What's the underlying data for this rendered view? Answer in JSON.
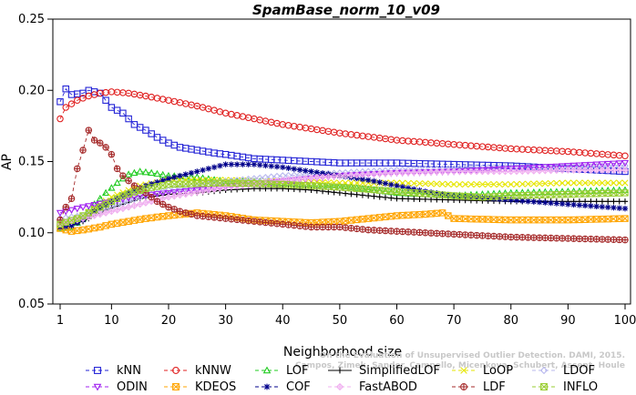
{
  "chart_data": {
    "type": "line",
    "title": "SpamBase_norm_10_v09",
    "xlabel": "Neighborhood size",
    "ylabel": "AP",
    "xlim": [
      1,
      100
    ],
    "ylim": [
      0.05,
      0.25
    ],
    "xticks": [
      "1",
      "10",
      "20",
      "30",
      "40",
      "50",
      "60",
      "70",
      "80",
      "90",
      "100"
    ],
    "yticks": [
      "0.05",
      "0.10",
      "0.15",
      "0.20",
      "0.25"
    ],
    "legend_position": "bottom",
    "watermark": [
      "On the Evaluation of Unsupervised Outlier Detection. DAMI, 2015.",
      "Campos, Zimek, Sander, Campello, Micenkova, Schubert, Assent, Houle"
    ],
    "series": [
      {
        "name": "kNN",
        "color": "#2323d6",
        "marker": "square",
        "dash": "4,3",
        "points": [
          [
            1,
            0.192
          ],
          [
            2,
            0.201
          ],
          [
            3,
            0.197
          ],
          [
            5,
            0.198
          ],
          [
            6,
            0.2
          ],
          [
            8,
            0.198
          ],
          [
            10,
            0.188
          ],
          [
            12,
            0.184
          ],
          [
            14,
            0.176
          ],
          [
            16,
            0.172
          ],
          [
            18,
            0.167
          ],
          [
            20,
            0.163
          ],
          [
            22,
            0.16
          ],
          [
            25,
            0.158
          ],
          [
            28,
            0.156
          ],
          [
            30,
            0.155
          ],
          [
            35,
            0.152
          ],
          [
            40,
            0.151
          ],
          [
            45,
            0.15
          ],
          [
            50,
            0.149
          ],
          [
            60,
            0.149
          ],
          [
            70,
            0.148
          ],
          [
            80,
            0.147
          ],
          [
            90,
            0.145
          ],
          [
            100,
            0.143
          ]
        ]
      },
      {
        "name": "kNNW",
        "color": "#e02020",
        "marker": "circle",
        "dash": "4,3",
        "points": [
          [
            1,
            0.18
          ],
          [
            2,
            0.188
          ],
          [
            4,
            0.193
          ],
          [
            6,
            0.196
          ],
          [
            8,
            0.198
          ],
          [
            10,
            0.199
          ],
          [
            13,
            0.198
          ],
          [
            16,
            0.196
          ],
          [
            20,
            0.193
          ],
          [
            25,
            0.189
          ],
          [
            30,
            0.184
          ],
          [
            35,
            0.18
          ],
          [
            40,
            0.176
          ],
          [
            50,
            0.17
          ],
          [
            60,
            0.165
          ],
          [
            70,
            0.162
          ],
          [
            80,
            0.159
          ],
          [
            90,
            0.157
          ],
          [
            100,
            0.154
          ]
        ]
      },
      {
        "name": "LOF",
        "color": "#22cc22",
        "marker": "triangle",
        "dash": "4,3",
        "points": [
          [
            1,
            0.103
          ],
          [
            3,
            0.104
          ],
          [
            5,
            0.11
          ],
          [
            7,
            0.12
          ],
          [
            9,
            0.128
          ],
          [
            11,
            0.135
          ],
          [
            13,
            0.141
          ],
          [
            15,
            0.143
          ],
          [
            17,
            0.142
          ],
          [
            20,
            0.14
          ],
          [
            25,
            0.139
          ],
          [
            30,
            0.136
          ],
          [
            35,
            0.136
          ],
          [
            40,
            0.135
          ],
          [
            50,
            0.133
          ],
          [
            60,
            0.128
          ],
          [
            70,
            0.126
          ],
          [
            80,
            0.128
          ],
          [
            90,
            0.129
          ],
          [
            100,
            0.13
          ]
        ]
      },
      {
        "name": "SimplifiedLOF",
        "color": "#000000",
        "marker": "plus",
        "dash": "",
        "points": [
          [
            1,
            0.108
          ],
          [
            3,
            0.106
          ],
          [
            5,
            0.108
          ],
          [
            7,
            0.112
          ],
          [
            9,
            0.116
          ],
          [
            12,
            0.12
          ],
          [
            15,
            0.124
          ],
          [
            20,
            0.127
          ],
          [
            25,
            0.128
          ],
          [
            30,
            0.13
          ],
          [
            35,
            0.131
          ],
          [
            40,
            0.131
          ],
          [
            45,
            0.13
          ],
          [
            50,
            0.128
          ],
          [
            55,
            0.126
          ],
          [
            60,
            0.124
          ],
          [
            70,
            0.123
          ],
          [
            80,
            0.122
          ],
          [
            90,
            0.122
          ],
          [
            100,
            0.122
          ]
        ]
      },
      {
        "name": "LoOP",
        "color": "#e6e600",
        "marker": "x",
        "dash": "4,3",
        "points": [
          [
            1,
            0.105
          ],
          [
            5,
            0.112
          ],
          [
            10,
            0.125
          ],
          [
            15,
            0.133
          ],
          [
            20,
            0.137
          ],
          [
            30,
            0.137
          ],
          [
            40,
            0.136
          ],
          [
            50,
            0.135
          ],
          [
            60,
            0.135
          ],
          [
            70,
            0.134
          ],
          [
            80,
            0.134
          ],
          [
            90,
            0.135
          ],
          [
            100,
            0.135
          ]
        ]
      },
      {
        "name": "LDOF",
        "color": "#b8b8ee",
        "marker": "diamond",
        "dash": "4,3",
        "points": [
          [
            1,
            0.11
          ],
          [
            5,
            0.112
          ],
          [
            10,
            0.118
          ],
          [
            15,
            0.125
          ],
          [
            20,
            0.13
          ],
          [
            30,
            0.136
          ],
          [
            40,
            0.14
          ],
          [
            50,
            0.142
          ],
          [
            60,
            0.144
          ],
          [
            70,
            0.145
          ],
          [
            80,
            0.146
          ],
          [
            90,
            0.146
          ],
          [
            100,
            0.147
          ]
        ]
      },
      {
        "name": "ODIN",
        "color": "#a020f0",
        "marker": "invtriangle",
        "dash": "4,3",
        "points": [
          [
            1,
            0.114
          ],
          [
            3,
            0.116
          ],
          [
            5,
            0.118
          ],
          [
            10,
            0.122
          ],
          [
            15,
            0.126
          ],
          [
            20,
            0.128
          ],
          [
            25,
            0.13
          ],
          [
            30,
            0.132
          ],
          [
            40,
            0.136
          ],
          [
            50,
            0.14
          ],
          [
            60,
            0.142
          ],
          [
            70,
            0.143
          ],
          [
            80,
            0.145
          ],
          [
            90,
            0.147
          ],
          [
            100,
            0.149
          ]
        ]
      },
      {
        "name": "KDEOS",
        "color": "#ffa500",
        "marker": "boxx",
        "dash": "4,3",
        "points": [
          [
            1,
            0.103
          ],
          [
            3,
            0.101
          ],
          [
            5,
            0.102
          ],
          [
            8,
            0.104
          ],
          [
            10,
            0.106
          ],
          [
            13,
            0.108
          ],
          [
            16,
            0.11
          ],
          [
            20,
            0.112
          ],
          [
            25,
            0.114
          ],
          [
            30,
            0.112
          ],
          [
            35,
            0.109
          ],
          [
            40,
            0.108
          ],
          [
            45,
            0.107
          ],
          [
            50,
            0.108
          ],
          [
            55,
            0.11
          ],
          [
            60,
            0.112
          ],
          [
            65,
            0.113
          ],
          [
            68,
            0.114
          ],
          [
            70,
            0.11
          ],
          [
            80,
            0.109
          ],
          [
            90,
            0.109
          ],
          [
            100,
            0.11
          ]
        ]
      },
      {
        "name": "COF",
        "color": "#00008b",
        "marker": "star",
        "dash": "4,3",
        "points": [
          [
            1,
            0.104
          ],
          [
            3,
            0.105
          ],
          [
            5,
            0.109
          ],
          [
            7,
            0.115
          ],
          [
            10,
            0.122
          ],
          [
            13,
            0.128
          ],
          [
            16,
            0.133
          ],
          [
            20,
            0.138
          ],
          [
            25,
            0.143
          ],
          [
            30,
            0.148
          ],
          [
            35,
            0.148
          ],
          [
            40,
            0.146
          ],
          [
            45,
            0.143
          ],
          [
            50,
            0.14
          ],
          [
            55,
            0.137
          ],
          [
            60,
            0.133
          ],
          [
            65,
            0.129
          ],
          [
            70,
            0.126
          ],
          [
            80,
            0.123
          ],
          [
            90,
            0.12
          ],
          [
            100,
            0.117
          ]
        ]
      },
      {
        "name": "FastABOD",
        "color": "#f0b0f0",
        "marker": "diamondplus",
        "dash": "4,3",
        "points": [
          [
            1,
            0.106
          ],
          [
            5,
            0.11
          ],
          [
            10,
            0.115
          ],
          [
            15,
            0.12
          ],
          [
            20,
            0.125
          ],
          [
            30,
            0.132
          ],
          [
            40,
            0.137
          ],
          [
            50,
            0.14
          ],
          [
            60,
            0.142
          ],
          [
            70,
            0.143
          ],
          [
            80,
            0.143
          ],
          [
            90,
            0.144
          ],
          [
            100,
            0.144
          ]
        ]
      },
      {
        "name": "LDF",
        "color": "#a52a2a",
        "marker": "circleplus",
        "dash": "4,3",
        "points": [
          [
            1,
            0.109
          ],
          [
            2,
            0.118
          ],
          [
            3,
            0.124
          ],
          [
            4,
            0.145
          ],
          [
            5,
            0.158
          ],
          [
            6,
            0.172
          ],
          [
            7,
            0.165
          ],
          [
            8,
            0.163
          ],
          [
            9,
            0.16
          ],
          [
            10,
            0.155
          ],
          [
            11,
            0.145
          ],
          [
            12,
            0.14
          ],
          [
            14,
            0.133
          ],
          [
            16,
            0.128
          ],
          [
            18,
            0.122
          ],
          [
            20,
            0.118
          ],
          [
            22,
            0.115
          ],
          [
            25,
            0.112
          ],
          [
            30,
            0.11
          ],
          [
            35,
            0.108
          ],
          [
            40,
            0.106
          ],
          [
            45,
            0.104
          ],
          [
            50,
            0.104
          ],
          [
            55,
            0.102
          ],
          [
            60,
            0.101
          ],
          [
            70,
            0.099
          ],
          [
            80,
            0.097
          ],
          [
            90,
            0.096
          ],
          [
            100,
            0.095
          ]
        ]
      },
      {
        "name": "INFLO",
        "color": "#9acd32",
        "marker": "boxx",
        "dash": "4,3",
        "points": [
          [
            1,
            0.106
          ],
          [
            4,
            0.11
          ],
          [
            8,
            0.118
          ],
          [
            12,
            0.126
          ],
          [
            16,
            0.131
          ],
          [
            20,
            0.134
          ],
          [
            30,
            0.135
          ],
          [
            40,
            0.134
          ],
          [
            50,
            0.132
          ],
          [
            60,
            0.129
          ],
          [
            70,
            0.126
          ],
          [
            75,
            0.125
          ],
          [
            80,
            0.126
          ],
          [
            90,
            0.127
          ],
          [
            100,
            0.128
          ]
        ]
      }
    ],
    "legend_rows": [
      [
        "kNN",
        "kNNW",
        "LOF",
        "SimplifiedLOF",
        "LoOP",
        "LDOF"
      ],
      [
        "ODIN",
        "KDEOS",
        "COF",
        "FastABOD",
        "LDF",
        "INFLO"
      ]
    ]
  }
}
